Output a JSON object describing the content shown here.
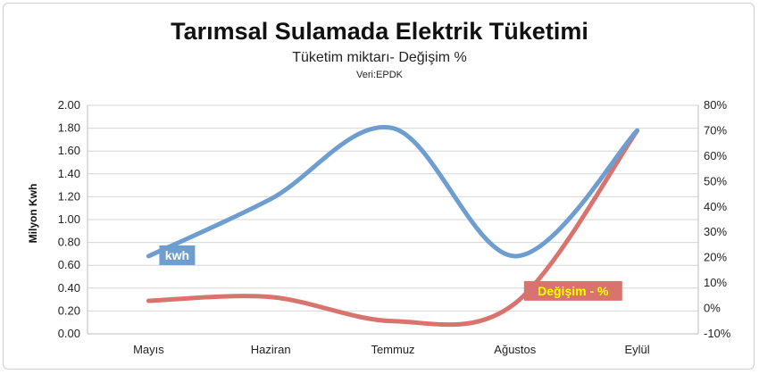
{
  "chart_data": {
    "type": "line",
    "title": "Tarımsal Sulamada Elektrik Tüketimi",
    "subtitle": "Tüketim miktarı- Değişim %",
    "source": "Veri:EPDK",
    "categories": [
      "Mayıs",
      "Haziran",
      "Temmuz",
      "Ağustos",
      "Eylül"
    ],
    "ylabel": "Milyon Kwh",
    "ylim": [
      0,
      2
    ],
    "yticks": [
      "0.00",
      "0.20",
      "0.40",
      "0.60",
      "0.80",
      "1.00",
      "1.20",
      "1.40",
      "1.60",
      "1.80",
      "2.00"
    ],
    "y2lim": [
      -10,
      80
    ],
    "y2ticks": [
      "-10%",
      "0%",
      "10%",
      "20%",
      "30%",
      "40%",
      "50%",
      "60%",
      "70%",
      "80%"
    ],
    "grid": true,
    "series": [
      {
        "name": "kwh",
        "axis": "left",
        "color": "#6d9ecf",
        "values": [
          0.68,
          1.18,
          1.8,
          0.68,
          1.78
        ],
        "label": "kwh"
      },
      {
        "name": "Değişim - %",
        "axis": "right",
        "color": "#d9736e",
        "values": [
          3,
          4.5,
          -5,
          2,
          70
        ],
        "label": "Değişim - %"
      }
    ]
  }
}
